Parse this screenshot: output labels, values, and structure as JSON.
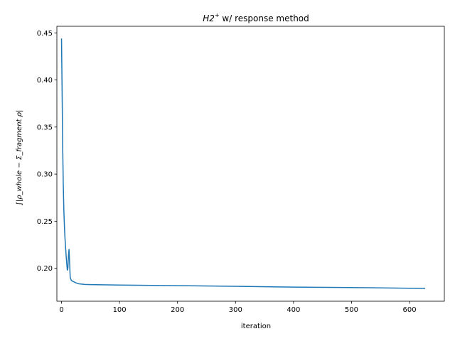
{
  "chart_data": {
    "type": "line",
    "title": {
      "species": "H2",
      "superscript": "+",
      "rest": " w/ response method"
    },
    "xlabel": "iteration",
    "ylabel": "∫|ρ_whole − Σ_fragment ρ|",
    "xlim": [
      -8,
      660
    ],
    "ylim": [
      0.165,
      0.457
    ],
    "xticks": [
      0,
      100,
      200,
      300,
      400,
      500,
      600
    ],
    "yticks": [
      0.2,
      0.25,
      0.3,
      0.35,
      0.4,
      0.45
    ],
    "grid": false,
    "series": [
      {
        "color": "#1f77b4",
        "x": [
          0,
          1,
          2,
          3,
          4,
          5,
          6,
          7,
          8,
          9,
          10,
          11,
          12,
          13,
          14,
          15,
          17,
          20,
          25,
          30,
          40,
          60,
          100,
          200,
          300,
          400,
          500,
          600,
          627
        ],
        "y": [
          0.444,
          0.39,
          0.33,
          0.29,
          0.262,
          0.245,
          0.232,
          0.222,
          0.213,
          0.205,
          0.198,
          0.2,
          0.214,
          0.22,
          0.205,
          0.19,
          0.187,
          0.186,
          0.1845,
          0.1835,
          0.1828,
          0.1825,
          0.1822,
          0.1815,
          0.1808,
          0.18,
          0.1795,
          0.1788,
          0.1786
        ]
      }
    ]
  }
}
